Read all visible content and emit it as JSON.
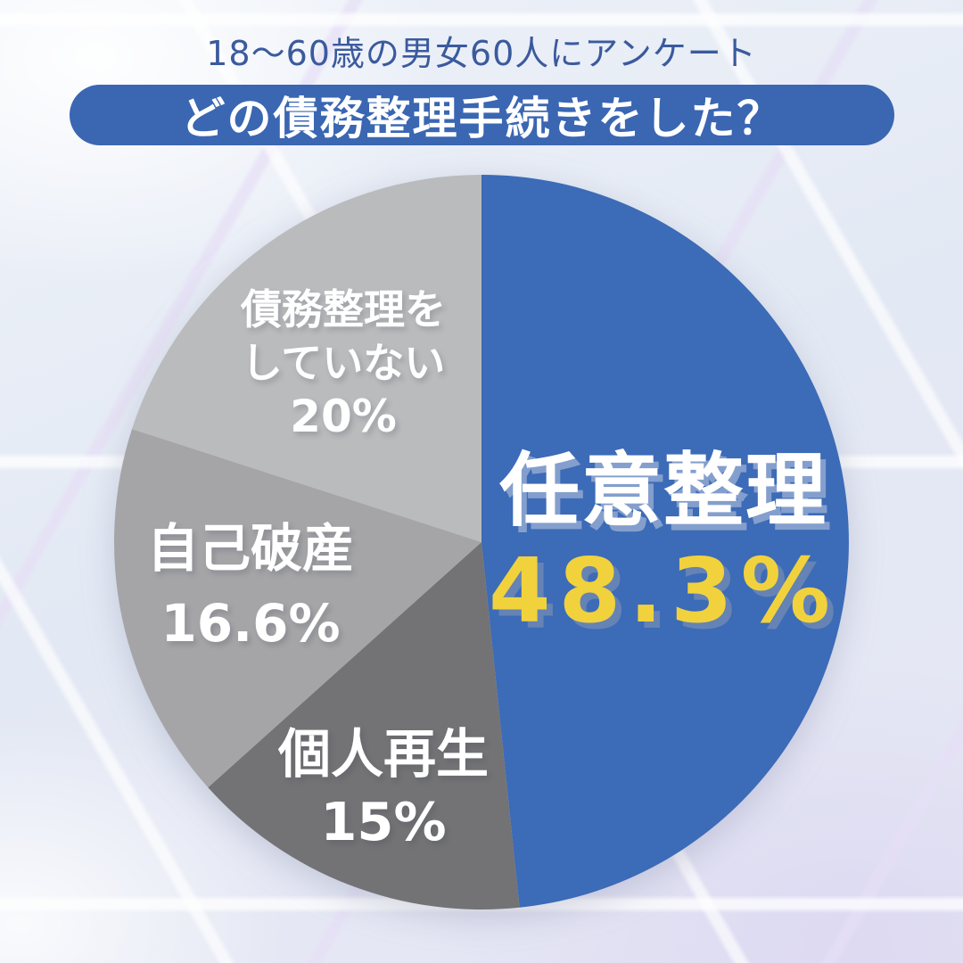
{
  "header": {
    "survey_note": "18〜60歳の男女60人にアンケート",
    "title": "どの債務整理手続きをした？"
  },
  "chart_data": {
    "type": "pie",
    "title": "どの債務整理手続きをした？",
    "subtitle": "18〜60歳の男女60人にアンケート",
    "sample_size": 60,
    "unit": "%",
    "start_angle_deg": 0,
    "direction": "clockwise",
    "legend": "labels drawn on slices",
    "segments": [
      {
        "id": "nini-seiri",
        "label": "任意整理",
        "value_pct": 48.3,
        "display_value": "48.3%",
        "color": "#3c6bb7",
        "label_color": "#ffffff",
        "value_color": "#f1d23d"
      },
      {
        "id": "kojin-saisei",
        "label": "個人再生",
        "value_pct": 15,
        "display_value": "15%",
        "color": "#737376",
        "label_color": "#ffffff",
        "value_color": "#ffffff"
      },
      {
        "id": "jiko-hasan",
        "label": "自己破産",
        "value_pct": 16.6,
        "display_value": "16.6%",
        "color": "#a5a5a8",
        "label_color": "#ffffff",
        "value_color": "#ffffff"
      },
      {
        "id": "saimu-seiri-shitenai",
        "label": "債務整理をしていない",
        "label_lines": [
          "債務整理を",
          "していない"
        ],
        "value_pct": 20,
        "display_value": "20%",
        "color": "#babbbd",
        "label_color": "#ffffff",
        "value_color": "#ffffff"
      }
    ]
  },
  "colors": {
    "background_base": "#e4eaf4",
    "mesh_line": "#ffffff",
    "banner_fill": "#3a66b2",
    "banner_text": "#ffffff",
    "survey_note_text": "#3b5a9e",
    "accent_yellow": "#f1d23d"
  }
}
